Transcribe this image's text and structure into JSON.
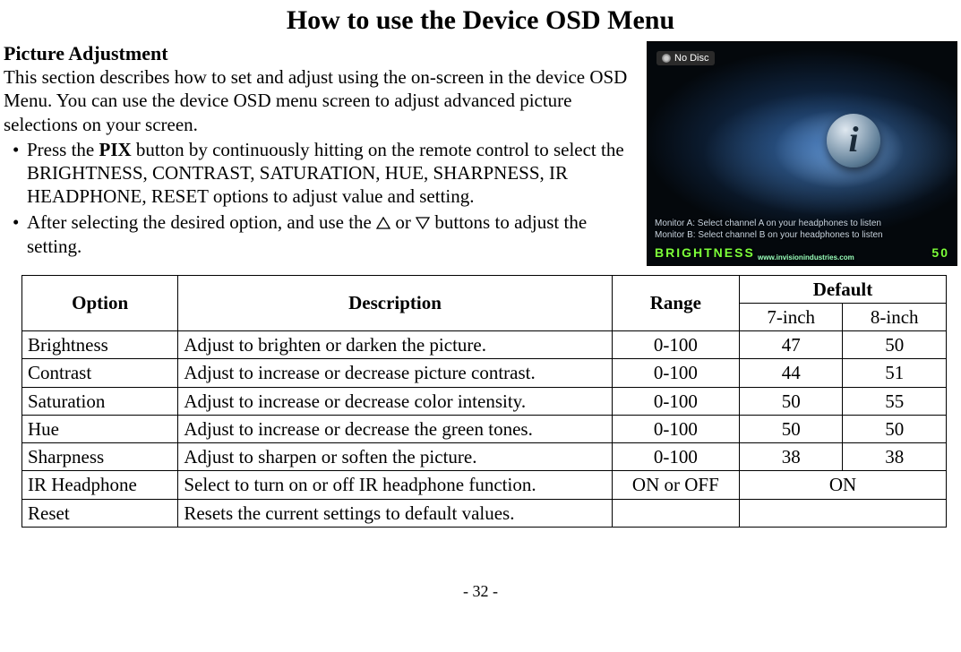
{
  "title": "How to use the Device OSD Menu",
  "section_heading": "Picture Adjustment",
  "intro": "This section describes how to set and adjust using the on-screen in the device OSD Menu. You can use the device OSD menu screen to adjust advanced picture selections on your screen.",
  "bullet1_pre": "Press the ",
  "bullet1_bold": "PIX",
  "bullet1_post": " button by continuously hitting on the remote control to select the BRIGHTNESS, CONTRAST, SATURATION, HUE, SHARPNESS, IR HEADPHONE, RESET options to adjust value and setting.",
  "bullet2_pre": "After selecting the desired option, and use the ",
  "bullet2_mid": " or ",
  "bullet2_post": " buttons to adjust the setting.",
  "osd": {
    "no_disc": "No Disc",
    "i_glyph": "i",
    "lineA": "Monitor A: Select channel A on your headphones to listen",
    "lineB": "Monitor B: Select channel B on your headphones to listen",
    "brightness_label": "BRIGHTNESS",
    "brightness_value": "50",
    "url": "www.invisionindustries.com"
  },
  "table": {
    "headers": {
      "option": "Option",
      "description": "Description",
      "range": "Range",
      "default": "Default",
      "d7": "7-inch",
      "d8": "8-inch"
    },
    "rows": [
      {
        "option": "Brightness",
        "desc": "Adjust to brighten or darken the picture.",
        "range": "0-100",
        "d7": "47",
        "d8": "50",
        "merged": false
      },
      {
        "option": "Contrast",
        "desc": "Adjust to increase or decrease picture contrast.",
        "range": "0-100",
        "d7": "44",
        "d8": "51",
        "merged": false
      },
      {
        "option": "Saturation",
        "desc": "Adjust to increase or decrease color intensity.",
        "range": "0-100",
        "d7": "50",
        "d8": "55",
        "merged": false
      },
      {
        "option": "Hue",
        "desc": "Adjust to increase or decrease the green tones.",
        "range": "0-100",
        "d7": "50",
        "d8": "50",
        "merged": false
      },
      {
        "option": "Sharpness",
        "desc": "Adjust to sharpen or soften the picture.",
        "range": "0-100",
        "d7": "38",
        "d8": "38",
        "merged": false
      },
      {
        "option": "IR Headphone",
        "desc": "Select to turn on or off IR headphone function.",
        "range": "ON or OFF",
        "d7": "ON",
        "d8": "",
        "merged": true
      },
      {
        "option": "Reset",
        "desc": "Resets the current settings to default values.",
        "range": "",
        "d7": "",
        "d8": "",
        "merged": true
      }
    ]
  },
  "page_number": "- 32 -"
}
